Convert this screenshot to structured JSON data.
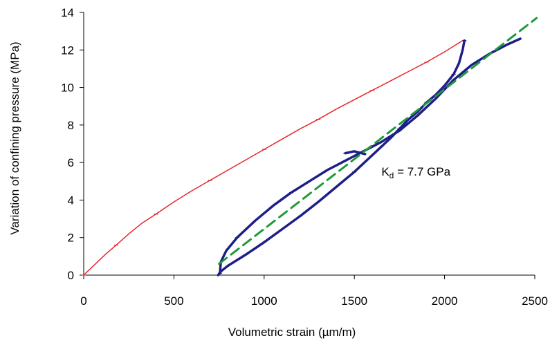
{
  "chart_data": {
    "type": "line",
    "title": "",
    "xlabel": "Volumetric strain (µm/m)",
    "ylabel": "Variation of confining pressure (MPa)",
    "xlim": [
      0,
      2500
    ],
    "ylim": [
      0,
      14
    ],
    "xticks": [
      0,
      500,
      1000,
      1500,
      2000,
      2500
    ],
    "yticks": [
      0,
      2,
      4,
      6,
      8,
      10,
      12,
      14
    ],
    "grid": false,
    "legend": "none",
    "annotation": {
      "main": "K",
      "sub": "d",
      "rest": " = 7.7 GPa",
      "x": 1650,
      "y": 5.3
    },
    "series": [
      {
        "color": "#e8262b",
        "style": "solid",
        "points": [
          [
            0,
            0
          ],
          [
            60,
            0.55
          ],
          [
            120,
            1.1
          ],
          [
            180,
            1.6
          ],
          [
            250,
            2.2
          ],
          [
            320,
            2.75
          ],
          [
            400,
            3.25
          ],
          [
            500,
            3.9
          ],
          [
            600,
            4.5
          ],
          [
            700,
            5.05
          ],
          [
            800,
            5.6
          ],
          [
            900,
            6.15
          ],
          [
            1000,
            6.7
          ],
          [
            1100,
            7.25
          ],
          [
            1200,
            7.8
          ],
          [
            1300,
            8.3
          ],
          [
            1400,
            8.85
          ],
          [
            1500,
            9.35
          ],
          [
            1600,
            9.85
          ],
          [
            1700,
            10.35
          ],
          [
            1800,
            10.85
          ],
          [
            1900,
            11.35
          ],
          [
            2000,
            11.9
          ],
          [
            2100,
            12.5
          ]
        ]
      },
      {
        "color": "#1e1e88",
        "style": "solid",
        "points": [
          [
            2110,
            12.5
          ],
          [
            2100,
            12.0
          ],
          [
            2080,
            11.3
          ],
          [
            2050,
            10.7
          ],
          [
            2000,
            10.1
          ],
          [
            1950,
            9.6
          ],
          [
            1900,
            9.2
          ],
          [
            1850,
            8.7
          ],
          [
            1800,
            8.3
          ],
          [
            1750,
            7.8
          ],
          [
            1700,
            7.3
          ],
          [
            1600,
            6.4
          ],
          [
            1500,
            5.5
          ],
          [
            1400,
            4.7
          ],
          [
            1300,
            3.9
          ],
          [
            1200,
            3.15
          ],
          [
            1100,
            2.45
          ],
          [
            1000,
            1.75
          ],
          [
            900,
            1.1
          ],
          [
            800,
            0.5
          ],
          [
            760,
            0.2
          ],
          [
            745,
            0
          ]
        ]
      },
      {
        "color": "#1e1e88",
        "style": "solid",
        "points": [
          [
            755,
            0.1
          ],
          [
            760,
            0.7
          ],
          [
            790,
            1.3
          ],
          [
            850,
            2.0
          ],
          [
            950,
            2.9
          ],
          [
            1050,
            3.7
          ],
          [
            1150,
            4.4
          ],
          [
            1250,
            5.0
          ],
          [
            1350,
            5.6
          ],
          [
            1450,
            6.1
          ],
          [
            1550,
            6.6
          ],
          [
            1650,
            7.1
          ],
          [
            1750,
            7.7
          ],
          [
            1850,
            8.5
          ],
          [
            1950,
            9.4
          ],
          [
            2050,
            10.4
          ],
          [
            2150,
            11.2
          ],
          [
            2250,
            11.8
          ],
          [
            2350,
            12.3
          ],
          [
            2420,
            12.6
          ]
        ]
      },
      {
        "color": "#1e1e88",
        "style": "solid",
        "points": [
          [
            1450,
            6.5
          ],
          [
            1500,
            6.6
          ],
          [
            1560,
            6.45
          ]
        ]
      },
      {
        "color": "#1f9a3a",
        "style": "dashed",
        "points": [
          [
            750,
            0.6
          ],
          [
            2510,
            13.7
          ]
        ]
      }
    ]
  }
}
